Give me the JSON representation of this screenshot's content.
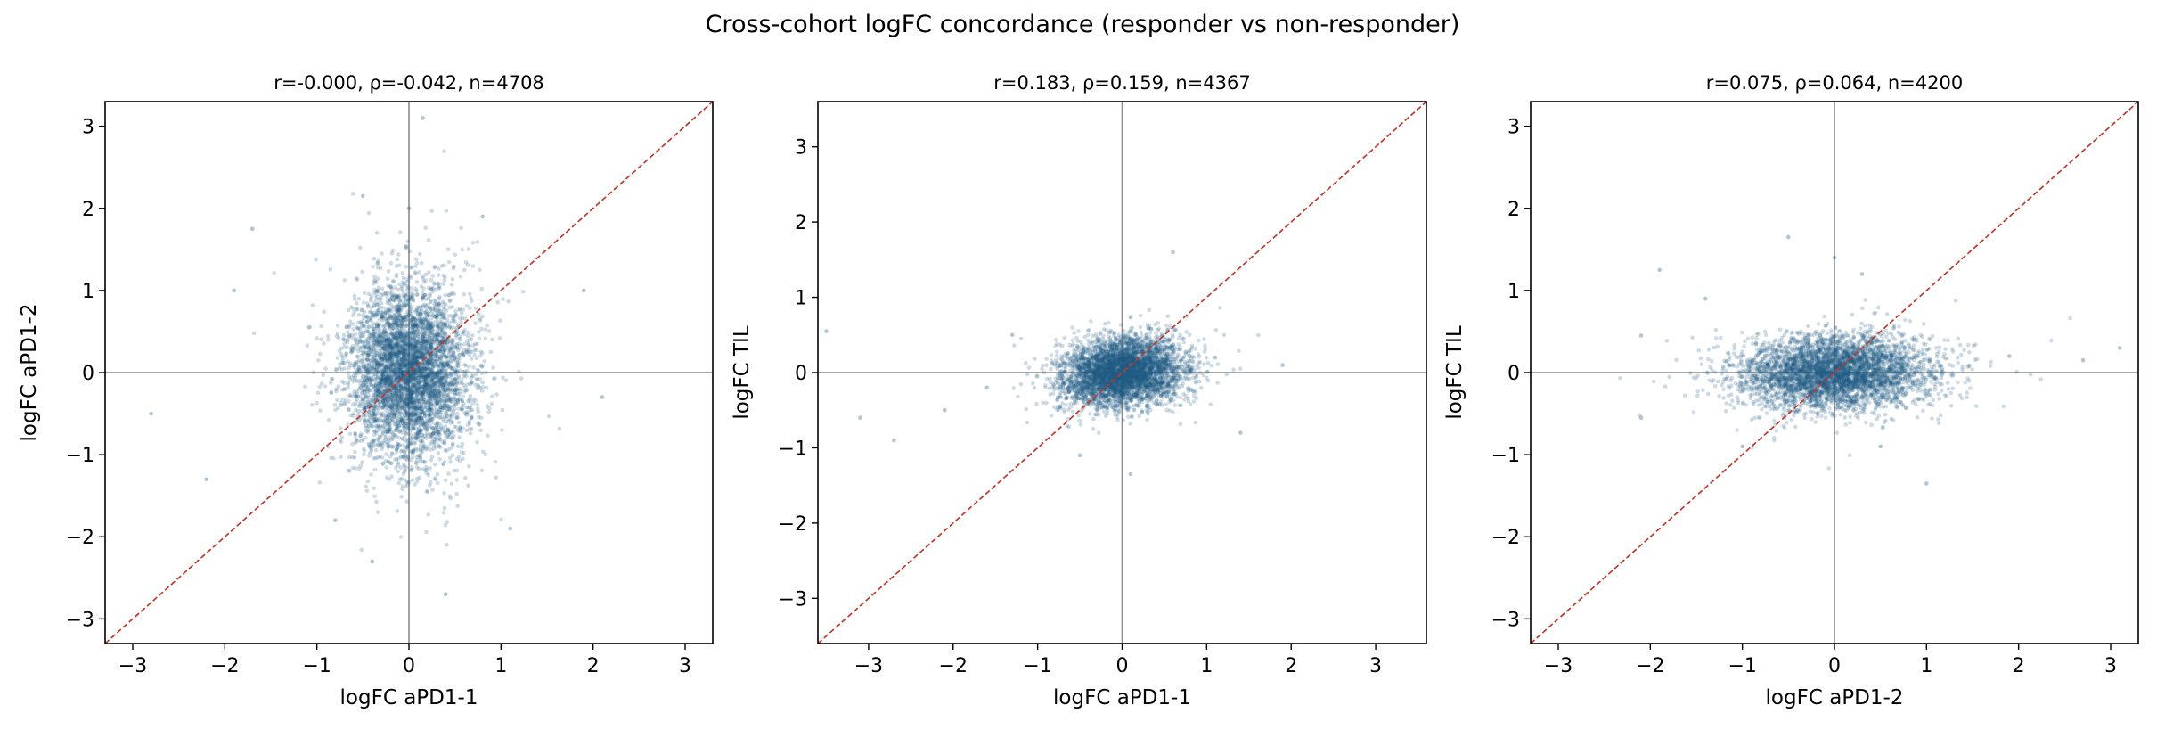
{
  "figure": {
    "suptitle": "Cross-cohort logFC concordance (responder vs non-responder)"
  },
  "colors": {
    "points": "#1f5a85",
    "identity_line": "#c0392b",
    "zero_lines": "#8c8c8c",
    "frame": "#000000"
  },
  "chart_data": [
    {
      "type": "scatter",
      "title": "r=-0.000, ρ=-0.042, n=4708",
      "xlabel": "logFC aPD1-1",
      "ylabel": "logFC aPD1-2",
      "xlim": [
        -3.3,
        3.3
      ],
      "ylim": [
        -3.3,
        3.3
      ],
      "xticks": [
        -3,
        -2,
        -1,
        0,
        1,
        2,
        3
      ],
      "yticks": [
        -3,
        -2,
        -1,
        0,
        1,
        2,
        3
      ],
      "reference_lines": [
        "y = x (dashed)",
        "x = 0",
        "y = 0"
      ],
      "n": 4708,
      "r": -0.0,
      "spearman_rho": -0.042,
      "points_sd_x": 0.32,
      "points_sd_y": 0.52,
      "sample_points": [
        [
          -2.8,
          -0.5
        ],
        [
          -2.2,
          -1.3
        ],
        [
          -1.9,
          1.0
        ],
        [
          -1.7,
          1.75
        ],
        [
          -0.8,
          -1.8
        ],
        [
          -0.5,
          2.15
        ],
        [
          0.0,
          2.0
        ],
        [
          0.15,
          3.1
        ],
        [
          0.8,
          1.9
        ],
        [
          0.4,
          -2.7
        ],
        [
          1.1,
          -1.9
        ],
        [
          2.1,
          -0.3
        ],
        [
          -0.4,
          -2.3
        ],
        [
          1.9,
          1.0
        ]
      ],
      "grid": false,
      "legend": "none"
    },
    {
      "type": "scatter",
      "title": "r=0.183, ρ=0.159, n=4367",
      "xlabel": "logFC aPD1-1",
      "ylabel": "logFC TIL",
      "xlim": [
        -3.6,
        3.6
      ],
      "ylim": [
        -3.6,
        3.6
      ],
      "xticks": [
        -3,
        -2,
        -1,
        0,
        1,
        2,
        3
      ],
      "yticks": [
        -3,
        -2,
        -1,
        0,
        1,
        2,
        3
      ],
      "reference_lines": [
        "y = x (dashed)",
        "x = 0",
        "y = 0"
      ],
      "n": 4367,
      "r": 0.183,
      "spearman_rho": 0.159,
      "points_sd_x": 0.35,
      "points_sd_y": 0.22,
      "sample_points": [
        [
          -3.1,
          -0.6
        ],
        [
          -2.7,
          -0.9
        ],
        [
          -2.1,
          -0.5
        ],
        [
          -1.3,
          0.5
        ],
        [
          -0.5,
          -1.1
        ],
        [
          0.6,
          1.6
        ],
        [
          1.1,
          0.2
        ],
        [
          1.4,
          -0.8
        ],
        [
          1.9,
          0.1
        ],
        [
          -1.6,
          -0.2
        ],
        [
          0.1,
          -1.35
        ],
        [
          -3.5,
          0.55
        ]
      ],
      "grid": false,
      "legend": "none"
    },
    {
      "type": "scatter",
      "title": "r=0.075, ρ=0.064, n=4200",
      "xlabel": "logFC aPD1-2",
      "ylabel": "logFC TIL",
      "xlim": [
        -3.3,
        3.3
      ],
      "ylim": [
        -3.3,
        3.3
      ],
      "xticks": [
        -3,
        -2,
        -1,
        0,
        1,
        2,
        3
      ],
      "yticks": [
        -3,
        -2,
        -1,
        0,
        1,
        2,
        3
      ],
      "reference_lines": [
        "y = x (dashed)",
        "x = 0",
        "y = 0"
      ],
      "n": 4200,
      "r": 0.075,
      "spearman_rho": 0.064,
      "points_sd_x": 0.52,
      "points_sd_y": 0.22,
      "sample_points": [
        [
          -1.9,
          1.25
        ],
        [
          -2.1,
          0.45
        ],
        [
          -2.1,
          -0.55
        ],
        [
          -1.4,
          0.9
        ],
        [
          -0.5,
          1.65
        ],
        [
          0.0,
          1.4
        ],
        [
          0.3,
          1.2
        ],
        [
          1.0,
          -1.35
        ],
        [
          1.9,
          0.2
        ],
        [
          2.7,
          0.15
        ],
        [
          3.1,
          0.3
        ],
        [
          -1.0,
          -0.9
        ],
        [
          0.5,
          -0.9
        ]
      ],
      "grid": false,
      "legend": "none"
    }
  ]
}
